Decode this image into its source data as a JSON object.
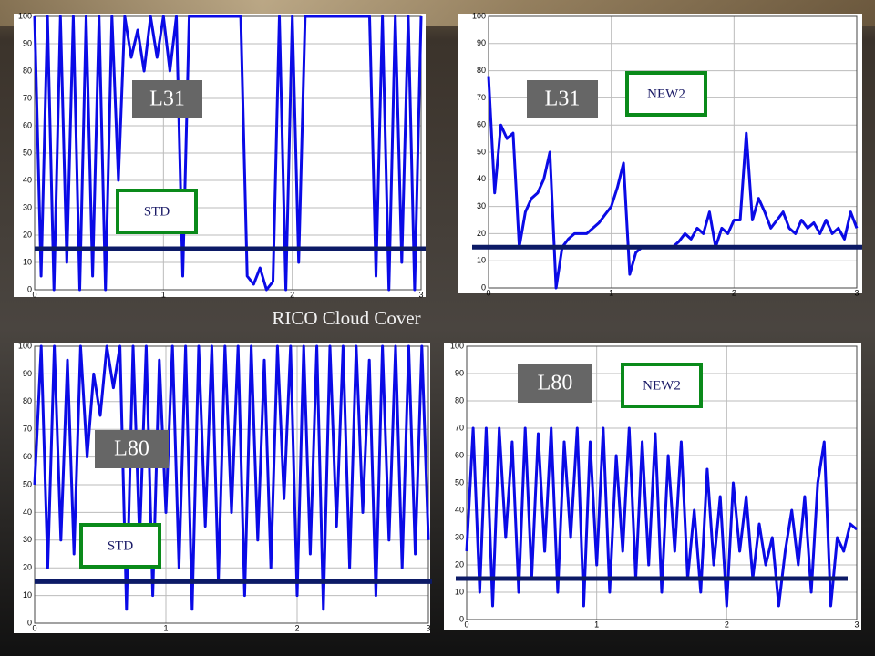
{
  "title": "RICO Cloud Cover",
  "chart_data": [
    {
      "type": "line",
      "label": "L31",
      "scheme": "STD",
      "x": [
        0,
        0.05,
        0.1,
        0.15,
        0.2,
        0.25,
        0.3,
        0.35,
        0.4,
        0.45,
        0.5,
        0.55,
        0.6,
        0.65,
        0.7,
        0.75,
        0.8,
        0.85,
        0.9,
        0.95,
        1,
        1.05,
        1.1,
        1.15,
        1.2,
        1.25,
        1.3,
        1.35,
        1.4,
        1.45,
        1.5,
        1.55,
        1.6,
        1.65,
        1.7,
        1.75,
        1.8,
        1.85,
        1.9,
        1.95,
        2,
        2.05,
        2.1,
        2.15,
        2.2,
        2.25,
        2.3,
        2.35,
        2.4,
        2.45,
        2.5,
        2.55,
        2.6,
        2.65,
        2.7,
        2.75,
        2.8,
        2.85,
        2.9,
        2.95,
        3
      ],
      "series": [
        {
          "color": "#0a0ae6",
          "values": [
            100,
            5,
            100,
            0,
            100,
            10,
            100,
            0,
            100,
            5,
            100,
            0,
            100,
            40,
            100,
            85,
            95,
            80,
            100,
            85,
            100,
            80,
            100,
            5,
            100,
            100,
            100,
            100,
            100,
            100,
            100,
            100,
            100,
            5,
            2,
            8,
            0,
            3,
            100,
            0,
            100,
            10,
            100,
            100,
            100,
            100,
            100,
            100,
            100,
            100,
            100,
            100,
            100,
            5,
            100,
            0,
            100,
            10,
            100,
            0,
            100
          ]
        }
      ],
      "reference_line": 15,
      "reference_color": "#0c1a66",
      "xlim": [
        0,
        3
      ],
      "ylim": [
        0,
        100
      ],
      "xticks": [
        0,
        1,
        2,
        3
      ],
      "yticks": [
        0,
        10,
        20,
        30,
        40,
        50,
        60,
        70,
        80,
        90,
        100
      ],
      "grid": true
    },
    {
      "type": "line",
      "label": "L31",
      "scheme": "NEW2",
      "x": [
        0,
        0.05,
        0.1,
        0.15,
        0.2,
        0.25,
        0.3,
        0.35,
        0.4,
        0.45,
        0.5,
        0.55,
        0.6,
        0.65,
        0.7,
        0.75,
        0.8,
        0.85,
        0.9,
        0.95,
        1,
        1.05,
        1.1,
        1.15,
        1.2,
        1.25,
        1.3,
        1.35,
        1.4,
        1.45,
        1.5,
        1.55,
        1.6,
        1.65,
        1.7,
        1.75,
        1.8,
        1.85,
        1.9,
        1.95,
        2,
        2.05,
        2.1,
        2.15,
        2.2,
        2.25,
        2.3,
        2.35,
        2.4,
        2.45,
        2.5,
        2.55,
        2.6,
        2.65,
        2.7,
        2.75,
        2.8,
        2.85,
        2.9,
        2.95,
        3
      ],
      "series": [
        {
          "color": "#0a0ae6",
          "values": [
            78,
            35,
            60,
            55,
            57,
            15,
            28,
            33,
            35,
            40,
            50,
            0,
            15,
            18,
            20,
            20,
            20,
            22,
            24,
            27,
            30,
            37,
            46,
            5,
            13,
            15,
            15,
            15,
            15,
            15,
            15,
            17,
            20,
            18,
            22,
            20,
            28,
            15,
            22,
            20,
            25,
            25,
            57,
            25,
            33,
            28,
            22,
            25,
            28,
            22,
            20,
            25,
            22,
            24,
            20,
            25,
            20,
            22,
            18,
            28,
            22
          ]
        }
      ],
      "reference_line": 15,
      "reference_color": "#0c1a66",
      "xlim": [
        0,
        3
      ],
      "ylim": [
        0,
        100
      ],
      "xticks": [
        0,
        1,
        2,
        3
      ],
      "yticks": [
        0,
        10,
        20,
        30,
        40,
        50,
        60,
        70,
        80,
        90,
        100
      ],
      "grid": true
    },
    {
      "type": "line",
      "label": "L80",
      "scheme": "STD",
      "x": [
        0,
        0.05,
        0.1,
        0.15,
        0.2,
        0.25,
        0.3,
        0.35,
        0.4,
        0.45,
        0.5,
        0.55,
        0.6,
        0.65,
        0.7,
        0.75,
        0.8,
        0.85,
        0.9,
        0.95,
        1,
        1.05,
        1.1,
        1.15,
        1.2,
        1.25,
        1.3,
        1.35,
        1.4,
        1.45,
        1.5,
        1.55,
        1.6,
        1.65,
        1.7,
        1.75,
        1.8,
        1.85,
        1.9,
        1.95,
        2,
        2.05,
        2.1,
        2.15,
        2.2,
        2.25,
        2.3,
        2.35,
        2.4,
        2.45,
        2.5,
        2.55,
        2.6,
        2.65,
        2.7,
        2.75,
        2.8,
        2.85,
        2.9,
        2.95,
        3
      ],
      "series": [
        {
          "color": "#0a0ae6",
          "values": [
            50,
            100,
            20,
            100,
            30,
            95,
            25,
            100,
            60,
            90,
            75,
            100,
            85,
            100,
            5,
            100,
            30,
            100,
            10,
            95,
            40,
            100,
            20,
            100,
            5,
            100,
            35,
            100,
            15,
            100,
            40,
            100,
            10,
            100,
            30,
            95,
            20,
            100,
            45,
            100,
            10,
            100,
            25,
            100,
            5,
            100,
            35,
            100,
            20,
            100,
            40,
            95,
            10,
            100,
            30,
            100,
            20,
            100,
            25,
            100,
            30
          ]
        }
      ],
      "reference_line": 15,
      "reference_color": "#0c1a66",
      "xlim": [
        0,
        3
      ],
      "ylim": [
        0,
        100
      ],
      "xticks": [
        0,
        1,
        2,
        3
      ],
      "yticks": [
        0,
        10,
        20,
        30,
        40,
        50,
        60,
        70,
        80,
        90,
        100
      ],
      "grid": true
    },
    {
      "type": "line",
      "label": "L80",
      "scheme": "NEW2",
      "x": [
        0,
        0.05,
        0.1,
        0.15,
        0.2,
        0.25,
        0.3,
        0.35,
        0.4,
        0.45,
        0.5,
        0.55,
        0.6,
        0.65,
        0.7,
        0.75,
        0.8,
        0.85,
        0.9,
        0.95,
        1,
        1.05,
        1.1,
        1.15,
        1.2,
        1.25,
        1.3,
        1.35,
        1.4,
        1.45,
        1.5,
        1.55,
        1.6,
        1.65,
        1.7,
        1.75,
        1.8,
        1.85,
        1.9,
        1.95,
        2,
        2.05,
        2.1,
        2.15,
        2.2,
        2.25,
        2.3,
        2.35,
        2.4,
        2.45,
        2.5,
        2.55,
        2.6,
        2.65,
        2.7,
        2.75,
        2.8,
        2.85,
        2.9,
        2.95,
        3
      ],
      "series": [
        {
          "color": "#0a0ae6",
          "values": [
            25,
            70,
            10,
            70,
            5,
            70,
            30,
            65,
            10,
            70,
            15,
            68,
            25,
            70,
            10,
            65,
            30,
            70,
            5,
            65,
            20,
            70,
            10,
            60,
            25,
            70,
            15,
            65,
            20,
            68,
            10,
            60,
            25,
            65,
            15,
            40,
            10,
            55,
            20,
            45,
            5,
            50,
            25,
            45,
            15,
            35,
            20,
            30,
            5,
            25,
            40,
            20,
            45,
            10,
            50,
            65,
            5,
            30,
            25,
            35,
            33
          ]
        }
      ],
      "reference_line": 15,
      "reference_color": "#0c1a66",
      "xlim": [
        0,
        3
      ],
      "ylim": [
        0,
        100
      ],
      "xticks": [
        0,
        1,
        2,
        3
      ],
      "yticks": [
        0,
        10,
        20,
        30,
        40,
        50,
        60,
        70,
        80,
        90,
        100
      ],
      "grid": true
    }
  ]
}
